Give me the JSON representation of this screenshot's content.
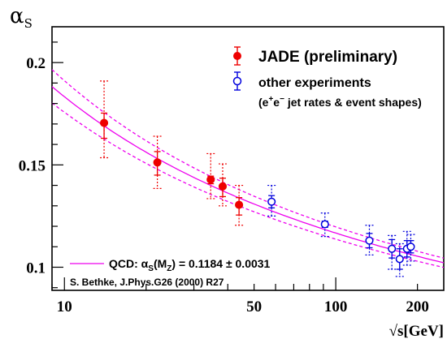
{
  "chart_data": {
    "type": "scatter",
    "title": "",
    "xlabel": "√s[GeV]",
    "ylabel": "αS",
    "xscale": "log",
    "xlim": [
      9.0,
      250.0
    ],
    "ylim": [
      0.0887,
      0.2175
    ],
    "grid": false,
    "legend_position": "top-right",
    "x_tick_labels": [
      "10",
      "50",
      "100",
      "200"
    ],
    "x_tick_values": [
      10,
      50,
      100,
      200
    ],
    "y_tick_labels": [
      "0.2",
      "0.15",
      "0.1"
    ],
    "y_tick_values": [
      0.2,
      0.15,
      0.1
    ],
    "series": [
      {
        "name": "JADE (preliminary)",
        "color": "#ee0000",
        "marker": "filled-circle",
        "points": [
          {
            "x": 14,
            "y": 0.1705,
            "stat_lo": 0.163,
            "stat_hi": 0.1753,
            "tot_lo": 0.1535,
            "tot_hi": 0.191
          },
          {
            "x": 22,
            "y": 0.1512,
            "stat_lo": 0.145,
            "stat_hi": 0.1565,
            "tot_lo": 0.1385,
            "tot_hi": 0.164
          },
          {
            "x": 34.6,
            "y": 0.1428,
            "stat_lo": 0.1408,
            "stat_hi": 0.1445,
            "tot_lo": 0.1335,
            "tot_hi": 0.1555
          },
          {
            "x": 38.3,
            "y": 0.1395,
            "stat_lo": 0.1345,
            "stat_hi": 0.1435,
            "tot_lo": 0.13,
            "tot_hi": 0.1505
          },
          {
            "x": 44,
            "y": 0.1305,
            "stat_lo": 0.1255,
            "stat_hi": 0.134,
            "tot_lo": 0.1205,
            "tot_hi": 0.14
          }
        ]
      },
      {
        "name": "other experiments",
        "color": "#0000dd",
        "marker": "open-circle",
        "points": [
          {
            "x": 58,
            "y": 0.132,
            "stat_lo": 0.129,
            "stat_hi": 0.135,
            "tot_lo": 0.125,
            "tot_hi": 0.14
          },
          {
            "x": 91.2,
            "y": 0.121,
            "stat_lo": 0.1195,
            "stat_hi": 0.1225,
            "tot_lo": 0.115,
            "tot_hi": 0.1265
          },
          {
            "x": 133,
            "y": 0.113,
            "stat_lo": 0.1095,
            "stat_hi": 0.1165,
            "tot_lo": 0.106,
            "tot_hi": 0.1205
          },
          {
            "x": 161,
            "y": 0.109,
            "stat_lo": 0.1045,
            "stat_hi": 0.1135,
            "tot_lo": 0.099,
            "tot_hi": 0.1155
          },
          {
            "x": 172,
            "y": 0.104,
            "stat_lo": 0.099,
            "stat_hi": 0.109,
            "tot_lo": 0.0955,
            "tot_hi": 0.1115
          },
          {
            "x": 183,
            "y": 0.109,
            "stat_lo": 0.105,
            "stat_hi": 0.113,
            "tot_lo": 0.101,
            "tot_hi": 0.1175
          },
          {
            "x": 189,
            "y": 0.11,
            "stat_lo": 0.107,
            "stat_hi": 0.113,
            "tot_lo": 0.103,
            "tot_hi": 0.116
          }
        ]
      }
    ],
    "qcd_curves": {
      "color": "#ee00ee",
      "central_alpha_mz": 0.1184,
      "band_alpha_mz": [
        0.1153,
        0.1215
      ],
      "mz": 91.2
    }
  },
  "legend": {
    "jade_label": "JADE (preliminary)",
    "other_label": "other experiments",
    "other_sub_open": "(e",
    "other_sub_plus": "+",
    "other_sub_mid": "e",
    "other_sub_minus": "−",
    "other_sub_close": " jet rates & event shapes)",
    "qcd_prefix": "QCD: α",
    "qcd_sub_s": "S",
    "qcd_paren_open": "(M",
    "qcd_sub_z": "Z",
    "qcd_value": ") = 0.1184 ± 0.0031",
    "reference": "S. Bethke, J.Phys.G26 (2000) R27"
  },
  "axes": {
    "ylabel_alpha": "α",
    "ylabel_sub": "S",
    "xlabel": "√s[GeV]"
  }
}
